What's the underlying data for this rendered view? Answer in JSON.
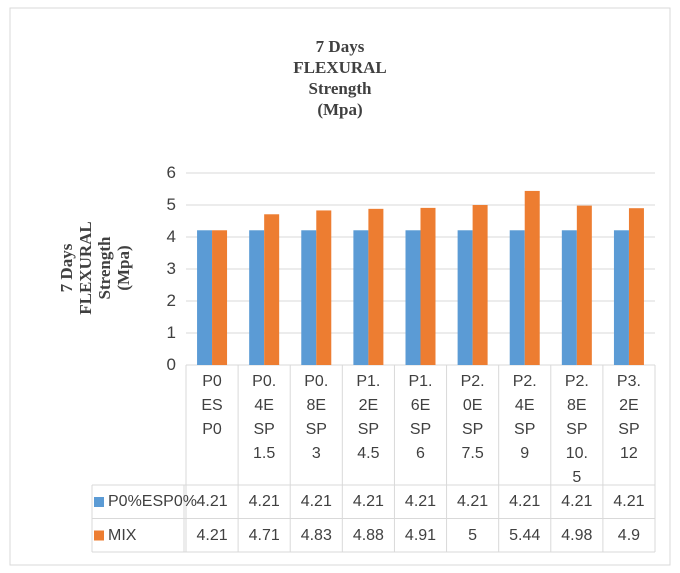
{
  "chart_data": {
    "type": "bar",
    "title": "7 Days FLEXURAL Strength (Mpa)",
    "y_label": "7 Days FLEXURAL Strength (Mpa)",
    "categories": [
      "P0ESP0",
      "P0.4ESP1.5",
      "P0.8ESP3",
      "P1.2ESP4.5",
      "P1.6ESP6",
      "P2.0ESP7.5",
      "P2.4ESP9",
      "P2.8ESP10.5",
      "P3.2ESP12"
    ],
    "series": [
      {
        "name": "P0%ESP0%",
        "color": "#5b9bd5",
        "values": [
          4.21,
          4.21,
          4.21,
          4.21,
          4.21,
          4.21,
          4.21,
          4.21,
          4.21
        ]
      },
      {
        "name": "MIX",
        "color": "#ed7d31",
        "values": [
          4.21,
          4.71,
          4.83,
          4.88,
          4.91,
          5,
          5.44,
          4.98,
          4.9
        ]
      }
    ],
    "ylim": [
      0,
      6
    ],
    "yticks": [
      0,
      1,
      2,
      3,
      4,
      5,
      6
    ],
    "grid": true,
    "data_table": true
  }
}
